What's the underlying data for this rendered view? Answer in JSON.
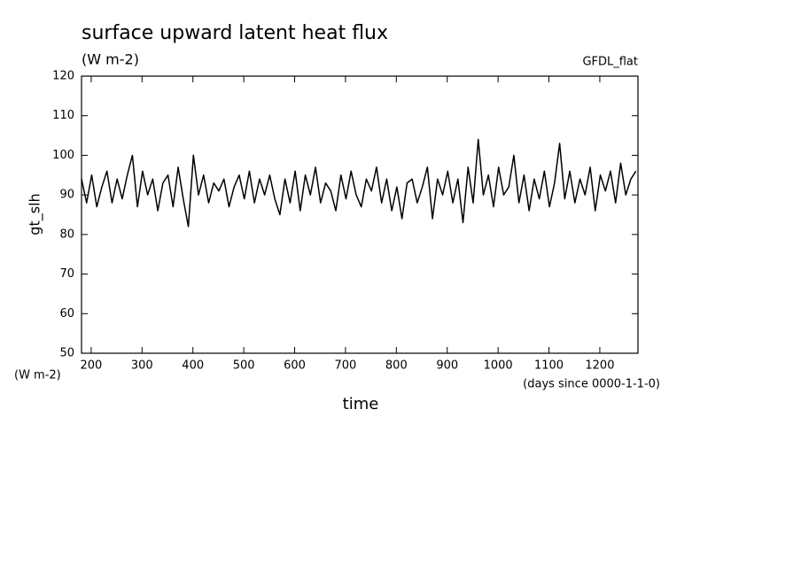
{
  "chart_data": {
    "type": "line",
    "title": "surface upward latent heat flux",
    "subtitle": "(W m-2)",
    "annotation": "GFDL_flat",
    "y_label": "gt_slh",
    "y_units": "(W m-2)",
    "x_units": "(days since 0000-1-1-0)",
    "x_label": "time",
    "color": "#000000",
    "xlim": [
      181,
      1275
    ],
    "ylim": [
      50,
      120
    ],
    "xticks": [
      200,
      300,
      400,
      500,
      600,
      700,
      800,
      900,
      1000,
      1100,
      1200
    ],
    "yticks": [
      50,
      60,
      70,
      80,
      90,
      100,
      110,
      120
    ],
    "grid": false,
    "x": [
      181,
      191,
      201,
      211,
      221,
      231,
      241,
      251,
      261,
      271,
      281,
      291,
      301,
      311,
      321,
      331,
      341,
      351,
      361,
      371,
      381,
      391,
      401,
      411,
      421,
      431,
      441,
      451,
      461,
      471,
      481,
      491,
      501,
      511,
      521,
      531,
      541,
      551,
      561,
      571,
      581,
      591,
      601,
      611,
      621,
      631,
      641,
      651,
      661,
      671,
      681,
      691,
      701,
      711,
      721,
      731,
      741,
      751,
      761,
      771,
      781,
      791,
      801,
      811,
      821,
      831,
      841,
      851,
      861,
      871,
      881,
      891,
      901,
      911,
      921,
      931,
      941,
      951,
      961,
      971,
      981,
      991,
      1001,
      1011,
      1021,
      1031,
      1041,
      1051,
      1061,
      1071,
      1081,
      1091,
      1101,
      1111,
      1121,
      1131,
      1141,
      1151,
      1161,
      1171,
      1181,
      1191,
      1201,
      1211,
      1221,
      1231,
      1241,
      1251,
      1261,
      1271
    ],
    "values": [
      94,
      88,
      95,
      87,
      92,
      96,
      88,
      94,
      89,
      95,
      100,
      87,
      96,
      90,
      94,
      86,
      93,
      95,
      87,
      97,
      89,
      82,
      100,
      90,
      95,
      88,
      93,
      91,
      94,
      87,
      92,
      95,
      89,
      96,
      88,
      94,
      90,
      95,
      89,
      85,
      94,
      88,
      96,
      86,
      95,
      90,
      97,
      88,
      93,
      91,
      86,
      95,
      89,
      96,
      90,
      87,
      94,
      91,
      97,
      88,
      94,
      86,
      92,
      84,
      93,
      94,
      88,
      92,
      97,
      84,
      94,
      90,
      96,
      88,
      94,
      83,
      97,
      88,
      104,
      90,
      95,
      87,
      97,
      90,
      92,
      100,
      88,
      95,
      86,
      94,
      89,
      96,
      87,
      93,
      103,
      89,
      96,
      88,
      94,
      90,
      97,
      86,
      95,
      91,
      96,
      88,
      98,
      90,
      94,
      96
    ]
  }
}
